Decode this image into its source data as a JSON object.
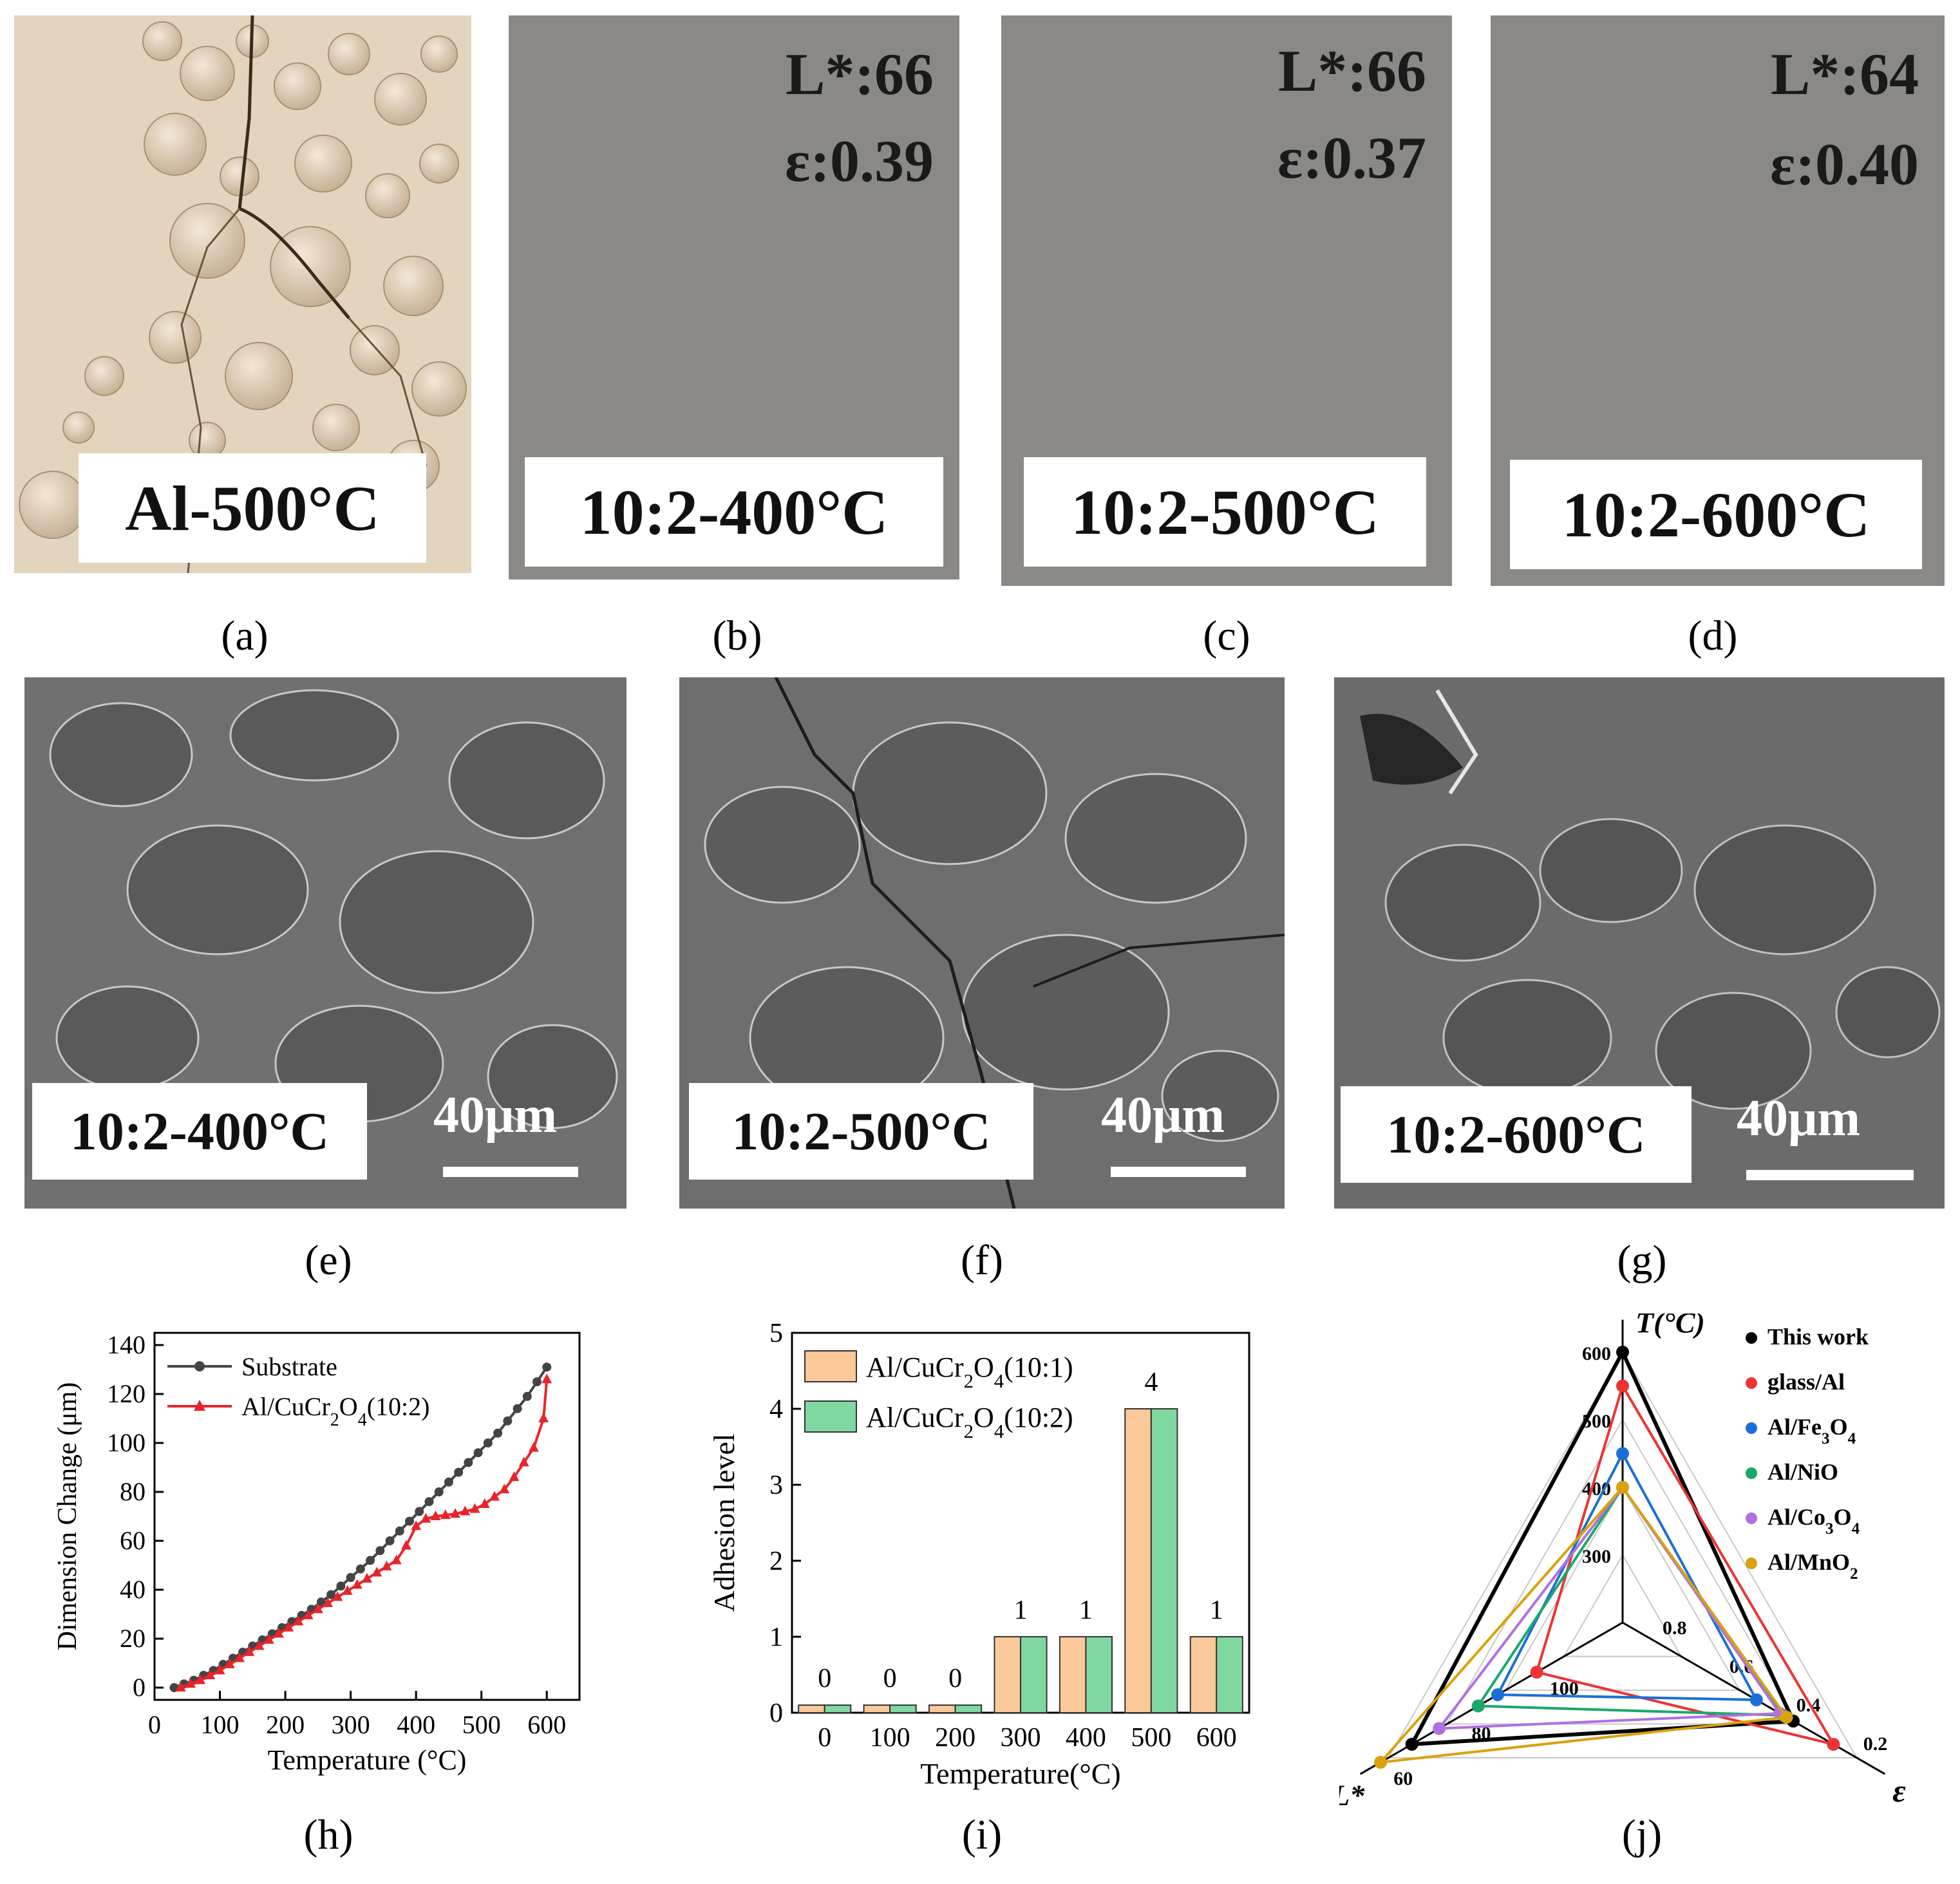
{
  "panels": {
    "a": {
      "label": "(a)",
      "tag": "Al-500°C"
    },
    "b": {
      "label": "(b)",
      "tag": "10:2-400°C",
      "L": "L*:66",
      "eps": "ε:0.39"
    },
    "c": {
      "label": "(c)",
      "tag": "10:2-500°C",
      "L": "L*:66",
      "eps": "ε:0.37"
    },
    "d": {
      "label": "(d)",
      "tag": "10:2-600°C",
      "L": "L*:64",
      "eps": "ε:0.40"
    },
    "e": {
      "label": "(e)",
      "tag": "10:2-400°C",
      "scale": "40μm"
    },
    "f": {
      "label": "(f)",
      "tag": "10:2-500°C",
      "scale": "40μm"
    },
    "g": {
      "label": "(g)",
      "tag": "10:2-600°C",
      "scale": "40μm"
    },
    "h": {
      "label": "(h)"
    },
    "i": {
      "label": "(i)"
    },
    "j": {
      "label": "(j)"
    }
  },
  "chart_data": [
    {
      "id": "h",
      "type": "line",
      "xlabel": "Temperature (°C)",
      "ylabel": "Dimension Change (μm)",
      "xlim": [
        0,
        650
      ],
      "ylim": [
        -5,
        145
      ],
      "xticks": [
        0,
        100,
        200,
        300,
        400,
        500,
        600
      ],
      "yticks": [
        0,
        20,
        40,
        60,
        80,
        100,
        120,
        140
      ],
      "legend_position": "top-left",
      "series": [
        {
          "name": "Substrate",
          "color": "#444444",
          "marker": "circle",
          "x": [
            30,
            45,
            60,
            75,
            90,
            105,
            120,
            135,
            150,
            165,
            180,
            195,
            210,
            225,
            240,
            255,
            270,
            285,
            300,
            315,
            330,
            345,
            360,
            375,
            390,
            405,
            420,
            435,
            450,
            465,
            480,
            495,
            510,
            525,
            540,
            555,
            570,
            585,
            600
          ],
          "y": [
            0,
            1.5,
            3,
            5,
            7,
            9.5,
            12,
            14.5,
            17,
            19.5,
            22,
            24.5,
            27,
            29.5,
            32,
            35,
            38,
            41.5,
            45,
            48.5,
            52,
            56,
            60,
            64,
            68,
            72,
            76,
            80,
            84,
            88,
            92,
            96,
            100,
            104,
            109,
            114,
            119,
            125,
            131
          ]
        },
        {
          "name": "Al/CuCr<sub>2</sub>O<sub>4</sub>(10:2)",
          "color": "#e8242b",
          "marker": "triangle",
          "x": [
            40,
            55,
            70,
            85,
            100,
            115,
            130,
            145,
            160,
            175,
            190,
            205,
            220,
            235,
            250,
            265,
            280,
            295,
            310,
            325,
            340,
            355,
            370,
            385,
            400,
            415,
            430,
            445,
            460,
            475,
            490,
            505,
            520,
            535,
            550,
            565,
            580,
            595,
            600
          ],
          "y": [
            0,
            1.5,
            3,
            5,
            7,
            9.5,
            12,
            14.5,
            17,
            19.5,
            22,
            24.5,
            27,
            29.5,
            32,
            34.5,
            37,
            39.5,
            42,
            44.5,
            47,
            49.5,
            52,
            58,
            66,
            69,
            70,
            70.5,
            71,
            72,
            73,
            75,
            78,
            81,
            86,
            92,
            98,
            110,
            126
          ]
        }
      ]
    },
    {
      "id": "i",
      "type": "bar",
      "xlabel": "Temperature(°C)",
      "ylabel": "Adhesion level",
      "ylim": [
        0,
        5
      ],
      "yticks": [
        0,
        1,
        2,
        3,
        4,
        5
      ],
      "categories": [
        "0",
        "100",
        "200",
        "300",
        "400",
        "500",
        "600"
      ],
      "legend_position": "top-left",
      "series": [
        {
          "name": "Al/CuCr<sub>2</sub>O<sub>4</sub>(10:1)",
          "color": "#fbc99a",
          "values": [
            0.1,
            0.1,
            0.1,
            1,
            1,
            4,
            1
          ]
        },
        {
          "name": "Al/CuCr<sub>2</sub>O<sub>4</sub>(10:2)",
          "color": "#7fd8a0",
          "values": [
            0.1,
            0.1,
            0.1,
            1,
            1,
            4,
            1
          ]
        }
      ],
      "data_labels": [
        "0",
        "0",
        "0",
        "1",
        "1",
        "4",
        "1"
      ]
    },
    {
      "id": "j",
      "type": "radar",
      "axes": [
        {
          "name": "T(°C)",
          "ticks": [
            "300",
            "400",
            "500",
            "600"
          ]
        },
        {
          "name": "ε",
          "ticks": [
            "0.8",
            "0.6",
            "0.4",
            "0.2"
          ]
        },
        {
          "name": "L*",
          "ticks": [
            "100",
            "80",
            "60"
          ]
        }
      ],
      "legend_position": "top-right",
      "series": [
        {
          "name": "This work",
          "color": "#000000",
          "T": 600,
          "eps": 0.39,
          "L": 66
        },
        {
          "name": "glass/Al",
          "color": "#ee3333",
          "T": 550,
          "eps": 0.27,
          "L": 98
        },
        {
          "name": "Al/Fe<sub>3</sub>O<sub>4</sub>",
          "color": "#1a6fd6",
          "T": 450,
          "eps": 0.5,
          "L": 88
        },
        {
          "name": "Al/NiO",
          "color": "#1aa86a",
          "T": 400,
          "eps": 0.42,
          "L": 83
        },
        {
          "name": "Al/Co<sub>3</sub>O<sub>4</sub>",
          "color": "#b070e0",
          "T": 400,
          "eps": 0.43,
          "L": 73
        },
        {
          "name": "Al/MnO<sub>2</sub>",
          "color": "#d9a20a",
          "T": 400,
          "eps": 0.41,
          "L": 58
        }
      ]
    }
  ]
}
